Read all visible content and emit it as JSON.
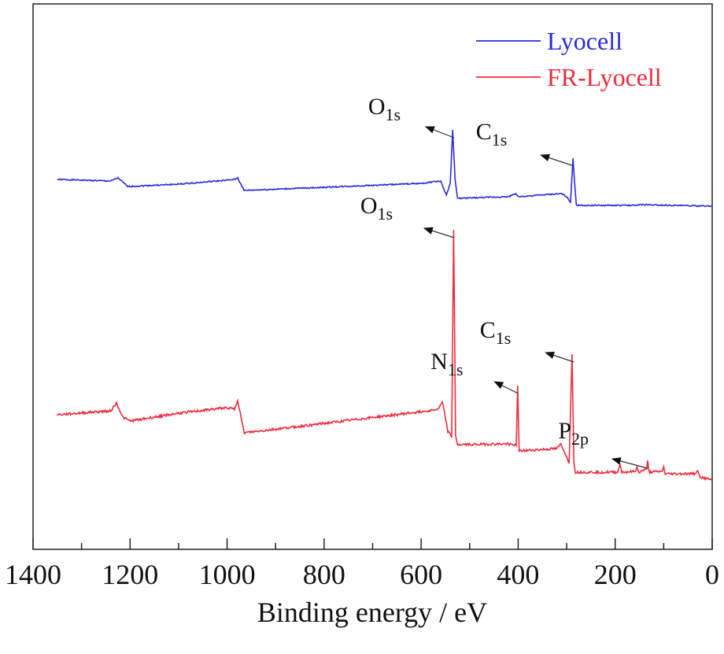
{
  "chart_data": {
    "type": "line",
    "xlabel": "Binding energy / eV",
    "ylabel": "",
    "xlim": [
      1400,
      0
    ],
    "x_reversed": true,
    "xticks": [
      1400,
      1200,
      1000,
      800,
      600,
      400,
      200,
      0
    ],
    "grid": false,
    "legend": "top-right",
    "series": [
      {
        "name": "Lyocell",
        "color": "#2b2bdc",
        "points": [
          [
            1350,
            470
          ],
          [
            1240,
            468
          ],
          [
            1225,
            472
          ],
          [
            1205,
            461
          ],
          [
            1100,
            464
          ],
          [
            1000,
            469
          ],
          [
            985,
            470
          ],
          [
            978,
            472
          ],
          [
            965,
            456
          ],
          [
            800,
            460
          ],
          [
            600,
            465
          ],
          [
            560,
            468
          ],
          [
            548,
            450
          ],
          [
            540,
            465
          ],
          [
            535,
            533
          ],
          [
            530,
            470
          ],
          [
            525,
            446
          ],
          [
            420,
            448
          ],
          [
            405,
            452
          ],
          [
            400,
            448
          ],
          [
            310,
            452
          ],
          [
            300,
            448
          ],
          [
            292,
            441
          ],
          [
            287,
            497
          ],
          [
            283,
            460
          ],
          [
            280,
            437
          ],
          [
            160,
            437
          ],
          [
            150,
            438
          ],
          [
            0,
            436
          ]
        ]
      },
      {
        "name": "FR-Lyocell",
        "color": "#ef2b3c",
        "points": [
          [
            1350,
            171
          ],
          [
            1240,
            176
          ],
          [
            1228,
            186
          ],
          [
            1215,
            168
          ],
          [
            1200,
            163
          ],
          [
            1100,
            173
          ],
          [
            1000,
            180
          ],
          [
            985,
            178
          ],
          [
            978,
            190
          ],
          [
            965,
            148
          ],
          [
            800,
            160
          ],
          [
            600,
            175
          ],
          [
            565,
            178
          ],
          [
            556,
            187
          ],
          [
            545,
            150
          ],
          [
            537,
            143
          ],
          [
            533,
            406
          ],
          [
            529,
            145
          ],
          [
            525,
            133
          ],
          [
            420,
            134
          ],
          [
            404,
            132
          ],
          [
            401,
            208
          ],
          [
            398,
            125
          ],
          [
            320,
            128
          ],
          [
            312,
            134
          ],
          [
            300,
            118
          ],
          [
            295,
            108
          ],
          [
            289,
            248
          ],
          [
            285,
            110
          ],
          [
            282,
            98
          ],
          [
            195,
            98
          ],
          [
            190,
            108
          ],
          [
            186,
            98
          ],
          [
            158,
            99
          ],
          [
            155,
            105
          ],
          [
            152,
            98
          ],
          [
            135,
            102
          ],
          [
            133,
            113
          ],
          [
            130,
            98
          ],
          [
            103,
            99
          ],
          [
            100,
            105
          ],
          [
            97,
            96
          ],
          [
            35,
            96
          ],
          [
            30,
            100
          ],
          [
            25,
            92
          ],
          [
            0,
            88
          ]
        ]
      }
    ],
    "annotations": [
      {
        "text": "O",
        "sub": "1s",
        "series": "Lyocell",
        "x": 532
      },
      {
        "text": "C",
        "sub": "1s",
        "series": "Lyocell",
        "x": 285
      },
      {
        "text": "O",
        "sub": "1s",
        "series": "FR-Lyocell",
        "x": 532
      },
      {
        "text": "N",
        "sub": "1s",
        "series": "FR-Lyocell",
        "x": 400
      },
      {
        "text": "C",
        "sub": "1s",
        "series": "FR-Lyocell",
        "x": 285
      },
      {
        "text": "P",
        "sub": "2p",
        "series": "FR-Lyocell",
        "x": 133
      }
    ]
  }
}
